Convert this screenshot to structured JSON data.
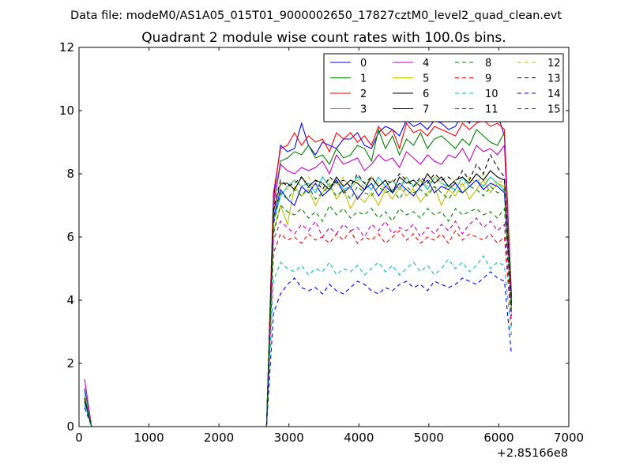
{
  "header": {
    "datafile": "Data file: modeM0/AS1A05_015T01_9000002650_17827cztM0_level2_quad_clean.evt"
  },
  "chart_data": {
    "type": "line",
    "title": "Quadrant 2 module wise count rates with 100.0s bins.",
    "xlabel": "",
    "ylabel": "",
    "x_offset_label": "+2.85166e8",
    "xlim": [
      0,
      7000
    ],
    "ylim": [
      0,
      12
    ],
    "xticks": [
      0,
      1000,
      2000,
      3000,
      4000,
      5000,
      6000,
      7000
    ],
    "yticks": [
      0,
      2,
      4,
      6,
      8,
      10,
      12
    ],
    "grid": false,
    "legend": {
      "placement": "top-right",
      "columns": 4
    },
    "colors": [
      "#0000ff",
      "#007f00",
      "#ff0000",
      "#00bfbf",
      "#bf00bf",
      "#bfbf00",
      "#000000",
      "#0000ff",
      "#007f00",
      "#ff0000",
      "#00bfbf",
      "#bf00bf",
      "#bfbf00",
      "#000000",
      "#0000ff",
      "#007f00"
    ],
    "x": {
      "early": [
        80,
        180,
        280,
        380,
        480,
        580,
        680,
        780,
        880,
        980,
        1080,
        1180,
        1280,
        1380,
        1480,
        1580,
        1680,
        1780,
        1880,
        1980,
        2080,
        2180,
        2280,
        2380,
        2480,
        2580,
        2680
      ],
      "active": [
        2780,
        2880,
        2980,
        3080,
        3180,
        3280,
        3380,
        3480,
        3580,
        3680,
        3780,
        3880,
        3980,
        4080,
        4180,
        4280,
        4380,
        4480,
        4580,
        4680,
        4780,
        4880,
        4980,
        5080,
        5180,
        5280,
        5380,
        5480,
        5580,
        5680,
        5780,
        5880,
        5980,
        6080,
        6180
      ]
    },
    "series": [
      {
        "name": "0",
        "style": "solid",
        "start": 1.2,
        "active": [
          7.2,
          8.9,
          8.7,
          8.8,
          9.6,
          8.9,
          8.6,
          9.0,
          8.9,
          8.8,
          9.1,
          9.1,
          9.3,
          8.9,
          8.8,
          9.3,
          9.5,
          9.4,
          9.2,
          9.7,
          9.5,
          9.6,
          9.4,
          9.7,
          9.6,
          9.4,
          9.5,
          9.9,
          9.6,
          10.1,
          9.8,
          10.1,
          9.9,
          9.2,
          4.1
        ]
      },
      {
        "name": "1",
        "style": "solid",
        "start": 1.1,
        "active": [
          7.0,
          8.4,
          8.5,
          8.7,
          8.6,
          8.9,
          8.5,
          8.6,
          8.3,
          8.8,
          8.5,
          8.6,
          8.9,
          8.8,
          8.4,
          9.4,
          8.8,
          9.2,
          8.6,
          9.1,
          8.9,
          9.3,
          8.8,
          9.1,
          9.2,
          9.0,
          8.8,
          9.1,
          8.9,
          9.4,
          9.2,
          9.0,
          8.9,
          9.3,
          4.2
        ]
      },
      {
        "name": "2",
        "style": "solid",
        "start": 1.0,
        "active": [
          7.4,
          8.8,
          8.9,
          9.3,
          8.9,
          9.2,
          9.0,
          9.1,
          8.7,
          9.3,
          9.1,
          9.3,
          9.0,
          9.2,
          8.9,
          9.5,
          9.2,
          9.4,
          8.8,
          9.6,
          9.3,
          9.4,
          9.2,
          9.5,
          9.4,
          9.3,
          9.2,
          9.6,
          9.4,
          9.6,
          9.7,
          9.5,
          9.6,
          9.4,
          4.0
        ]
      },
      {
        "name": "3",
        "style": "solid",
        "start": 1.1,
        "active": [
          6.5,
          7.3,
          7.6,
          7.8,
          7.6,
          7.7,
          7.4,
          7.9,
          7.6,
          7.8,
          7.5,
          7.6,
          7.9,
          7.7,
          7.5,
          7.9,
          7.6,
          7.8,
          7.5,
          7.9,
          7.6,
          7.8,
          7.5,
          7.9,
          7.7,
          7.6,
          7.5,
          7.9,
          7.6,
          7.8,
          7.6,
          7.9,
          7.7,
          7.5,
          3.8
        ]
      },
      {
        "name": "4",
        "style": "solid",
        "start": 1.5,
        "active": [
          7.0,
          8.3,
          8.1,
          8.0,
          8.2,
          8.1,
          8.2,
          8.4,
          8.0,
          8.6,
          8.3,
          8.4,
          8.5,
          8.1,
          8.3,
          8.6,
          8.4,
          8.5,
          8.2,
          8.7,
          8.5,
          8.3,
          8.6,
          8.4,
          8.3,
          8.6,
          8.5,
          8.8,
          8.4,
          8.9,
          8.7,
          8.8,
          8.6,
          8.9,
          3.9
        ]
      },
      {
        "name": "5",
        "style": "solid",
        "start": 1.0,
        "active": [
          6.2,
          7.0,
          6.4,
          7.6,
          7.3,
          7.5,
          7.0,
          7.4,
          7.7,
          7.2,
          7.5,
          6.9,
          7.3,
          7.1,
          7.4,
          7.0,
          7.5,
          7.2,
          7.6,
          7.3,
          7.5,
          7.1,
          7.4,
          7.6,
          7.0,
          7.5,
          7.3,
          7.7,
          7.2,
          7.5,
          7.8,
          7.4,
          7.7,
          7.6,
          3.6
        ]
      },
      {
        "name": "6",
        "style": "solid",
        "start": 0.9,
        "active": [
          6.8,
          7.7,
          7.7,
          7.5,
          7.9,
          7.6,
          7.8,
          7.7,
          7.5,
          7.9,
          7.6,
          7.8,
          7.7,
          7.5,
          7.9,
          7.6,
          7.8,
          7.4,
          7.9,
          7.7,
          7.8,
          7.6,
          8.0,
          7.7,
          7.9,
          7.6,
          7.8,
          7.9,
          7.7,
          8.0,
          7.8,
          8.1,
          7.9,
          7.8,
          3.8
        ]
      },
      {
        "name": "7",
        "style": "solid",
        "start": 0.8,
        "active": [
          6.6,
          7.5,
          7.2,
          7.0,
          7.6,
          7.4,
          7.7,
          7.3,
          7.5,
          7.8,
          7.4,
          7.6,
          7.2,
          7.5,
          7.7,
          7.3,
          7.6,
          7.4,
          7.7,
          7.5,
          7.3,
          7.6,
          7.8,
          7.4,
          7.6,
          7.5,
          7.7,
          7.4,
          7.6,
          7.8,
          7.5,
          7.7,
          7.6,
          7.4,
          3.7
        ]
      },
      {
        "name": "8",
        "style": "dashed",
        "start": 0.9,
        "active": [
          6.1,
          7.0,
          6.8,
          6.7,
          6.9,
          6.6,
          6.8,
          6.5,
          7.0,
          6.7,
          6.9,
          6.6,
          6.8,
          6.7,
          6.9,
          6.6,
          6.8,
          6.5,
          6.9,
          6.7,
          6.8,
          6.6,
          6.9,
          6.7,
          6.8,
          6.5,
          6.9,
          6.7,
          6.8,
          6.9,
          6.7,
          6.8,
          6.6,
          6.9,
          3.5
        ]
      },
      {
        "name": "9",
        "style": "dashed",
        "start": 0.8,
        "active": [
          5.5,
          6.1,
          5.9,
          6.0,
          5.8,
          6.1,
          5.9,
          6.0,
          5.8,
          6.1,
          5.9,
          6.2,
          5.8,
          6.0,
          5.9,
          6.1,
          5.8,
          6.0,
          6.2,
          5.9,
          6.1,
          5.8,
          6.0,
          5.9,
          6.1,
          5.8,
          6.2,
          5.9,
          6.1,
          6.0,
          5.9,
          6.1,
          5.8,
          6.0,
          3.2
        ]
      },
      {
        "name": "10",
        "style": "dashed",
        "start": 0.7,
        "active": [
          4.6,
          5.2,
          5.0,
          4.9,
          5.1,
          4.8,
          5.0,
          4.9,
          5.2,
          4.8,
          5.0,
          4.9,
          5.1,
          4.8,
          5.0,
          5.2,
          4.9,
          5.1,
          4.8,
          5.0,
          5.2,
          4.9,
          5.1,
          4.8,
          5.0,
          5.3,
          5.0,
          5.2,
          4.9,
          5.1,
          5.4,
          5.0,
          5.2,
          5.1,
          2.9
        ]
      },
      {
        "name": "11",
        "style": "dashed",
        "start": 0.8,
        "active": [
          5.9,
          6.5,
          6.3,
          6.1,
          6.4,
          6.2,
          6.5,
          6.0,
          6.3,
          6.1,
          6.4,
          6.2,
          6.3,
          6.0,
          6.4,
          6.2,
          6.5,
          6.1,
          6.3,
          6.2,
          6.4,
          6.0,
          6.3,
          6.1,
          6.4,
          6.2,
          6.5,
          6.1,
          6.4,
          6.6,
          6.3,
          6.5,
          6.2,
          6.4,
          3.3
        ]
      },
      {
        "name": "12",
        "style": "dashed",
        "start": 0.9,
        "active": [
          6.7,
          7.7,
          7.5,
          7.8,
          7.6,
          7.9,
          7.5,
          7.7,
          7.8,
          7.6,
          7.9,
          7.5,
          7.8,
          7.6,
          7.9,
          7.7,
          7.5,
          7.8,
          7.6,
          7.9,
          7.5,
          7.8,
          7.6,
          7.9,
          7.7,
          7.5,
          7.8,
          7.6,
          7.9,
          7.7,
          8.0,
          7.6,
          7.8,
          7.7,
          3.7
        ]
      },
      {
        "name": "13",
        "style": "dashed",
        "start": 0.9,
        "active": [
          6.9,
          7.8,
          7.6,
          7.7,
          7.9,
          7.6,
          7.8,
          7.5,
          7.9,
          7.7,
          7.8,
          7.6,
          8.0,
          7.7,
          7.9,
          7.6,
          7.8,
          7.7,
          8.0,
          7.8,
          7.6,
          7.9,
          7.7,
          8.0,
          7.8,
          7.9,
          7.7,
          8.1,
          7.8,
          8.3,
          8.0,
          8.6,
          8.2,
          7.9,
          3.9
        ]
      },
      {
        "name": "14",
        "style": "dashed",
        "start": 0.6,
        "active": [
          3.6,
          4.2,
          4.5,
          4.7,
          4.4,
          4.3,
          4.4,
          4.2,
          4.5,
          4.3,
          4.2,
          4.4,
          4.6,
          4.5,
          4.3,
          4.2,
          4.4,
          4.3,
          4.5,
          4.6,
          4.4,
          4.5,
          4.3,
          4.6,
          4.5,
          4.4,
          4.5,
          4.7,
          4.6,
          4.5,
          4.7,
          4.9,
          4.7,
          4.6,
          2.3
        ]
      },
      {
        "name": "15",
        "style": "dashed",
        "start": 0.8,
        "active": [
          6.4,
          7.4,
          7.2,
          7.5,
          7.3,
          7.6,
          7.2,
          7.4,
          7.6,
          7.3,
          7.5,
          7.2,
          7.6,
          7.4,
          7.3,
          7.6,
          7.4,
          7.5,
          7.2,
          7.6,
          7.4,
          7.5,
          7.3,
          7.6,
          7.4,
          7.2,
          7.5,
          7.4,
          7.6,
          7.5,
          7.3,
          7.6,
          7.4,
          7.5,
          3.6
        ]
      }
    ]
  }
}
